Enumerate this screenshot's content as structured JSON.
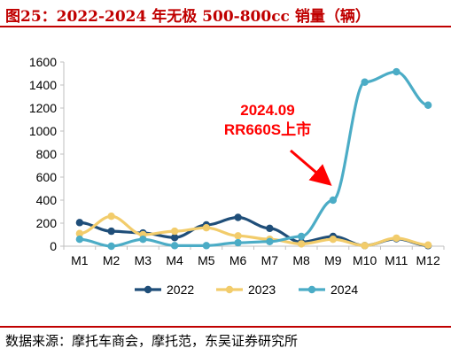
{
  "header": {
    "title": "图25：2022-2024 年无极 500-800cc 销量（辆）"
  },
  "footer": {
    "source": "数据来源：摩托车商会，摩托范，东吴证券研究所"
  },
  "colors": {
    "title_red": "#c00000",
    "annotation_red": "#ff0000",
    "axis": "#bfbfbf",
    "text": "#000000"
  },
  "annotation": {
    "line1": "2024.09",
    "line2": "RR660S上市",
    "points_to": "M9"
  },
  "chart_data": {
    "type": "line",
    "title": "",
    "xlabel": "",
    "ylabel": "",
    "categories": [
      "M1",
      "M2",
      "M3",
      "M4",
      "M5",
      "M6",
      "M7",
      "M8",
      "M9",
      "M10",
      "M11",
      "M12"
    ],
    "ylim": [
      0,
      1600
    ],
    "yticks": [
      0,
      200,
      400,
      600,
      800,
      1000,
      1200,
      1400,
      1600
    ],
    "grid": false,
    "legend_position": "bottom",
    "series": [
      {
        "name": "2022",
        "color": "#1f4e79",
        "values": [
          205,
          130,
          115,
          75,
          185,
          250,
          155,
          35,
          85,
          5,
          65,
          5
        ]
      },
      {
        "name": "2023",
        "color": "#f2cc6b",
        "values": [
          110,
          260,
          100,
          130,
          160,
          90,
          60,
          20,
          60,
          5,
          70,
          10
        ]
      },
      {
        "name": "2024",
        "color": "#4bacc6",
        "values": [
          60,
          0,
          60,
          5,
          5,
          30,
          40,
          85,
          400,
          1425,
          1515,
          1225
        ]
      }
    ]
  }
}
